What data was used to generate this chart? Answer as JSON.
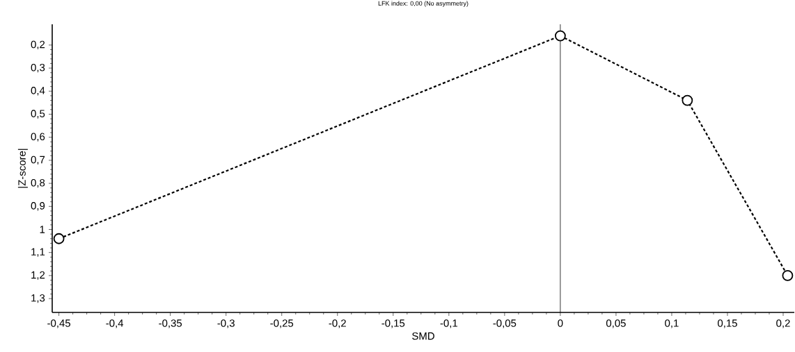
{
  "chart_data": {
    "type": "line",
    "title": "LFK index: 0,00 (No asymmetry)",
    "xlabel": "SMD",
    "ylabel": "|Z-score|",
    "x": [
      -0.45,
      0,
      0.114,
      0.204
    ],
    "series": [
      {
        "color": "#000000",
        "values": [
          1.04,
          0.16,
          0.44,
          1.2
        ]
      }
    ],
    "xlim": [
      -0.456,
      0.21
    ],
    "ylim": [
      1.36,
      0.11
    ],
    "xticks": [
      {
        "value": -0.45,
        "label": "-0,45"
      },
      {
        "value": -0.4,
        "label": "-0,4"
      },
      {
        "value": -0.35,
        "label": "-0,35"
      },
      {
        "value": -0.3,
        "label": "-0,3"
      },
      {
        "value": -0.25,
        "label": "-0,25"
      },
      {
        "value": -0.2,
        "label": "-0,2"
      },
      {
        "value": -0.15,
        "label": "-0,15"
      },
      {
        "value": -0.1,
        "label": "-0,1"
      },
      {
        "value": -0.05,
        "label": "-0,05"
      },
      0,
      {
        "value": 0.05,
        "label": "0,05"
      },
      {
        "value": 0.1,
        "label": "0,1"
      },
      {
        "value": 0.15,
        "label": "0,15"
      },
      {
        "value": 0.2,
        "label": "0,2"
      }
    ],
    "yticks": [
      {
        "value": 0.2,
        "label": "0,2"
      },
      {
        "value": 0.3,
        "label": "0,3"
      },
      {
        "value": 0.4,
        "label": "0,4"
      },
      {
        "value": 0.5,
        "label": "0,5"
      },
      {
        "value": 0.6,
        "label": "0,6"
      },
      {
        "value": 0.7,
        "label": "0,7"
      },
      {
        "value": 0.8,
        "label": "0,8"
      },
      {
        "value": 0.9,
        "label": "0,9"
      },
      1,
      {
        "value": 1.1,
        "label": "1,1"
      },
      {
        "value": 1.2,
        "label": "1,2"
      },
      {
        "value": 1.3,
        "label": "1,3"
      }
    ],
    "ref_lines": [
      {
        "axis": "x",
        "value": 0,
        "color": "#000000"
      }
    ],
    "marker": "circle",
    "line_style": "dashed"
  }
}
